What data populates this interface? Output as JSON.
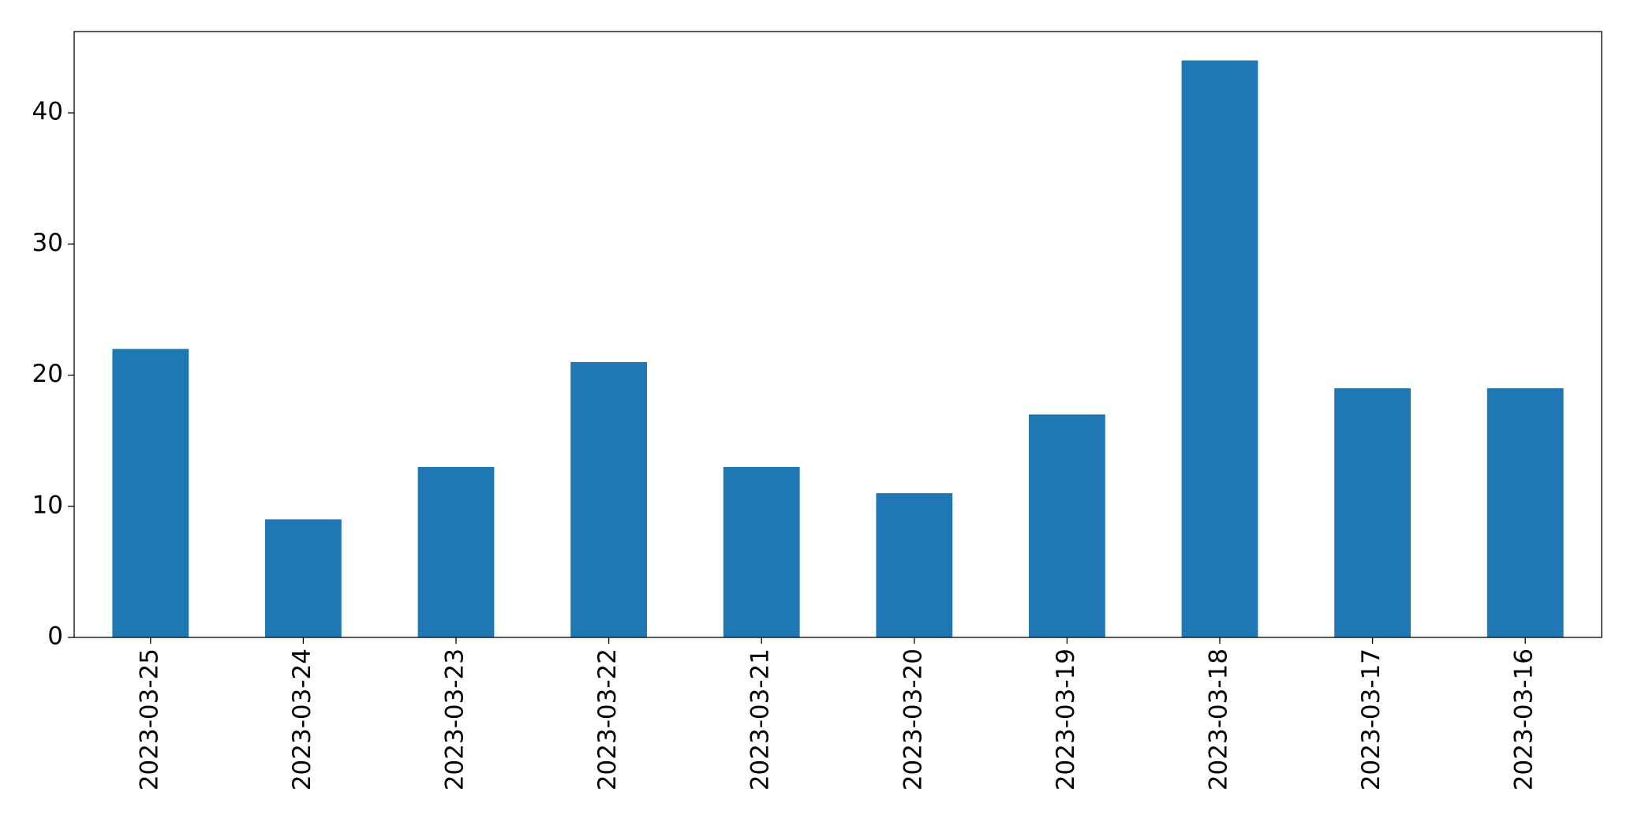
{
  "chart_data": {
    "type": "bar",
    "categories": [
      "2023-03-25",
      "2023-03-24",
      "2023-03-23",
      "2023-03-22",
      "2023-03-21",
      "2023-03-20",
      "2023-03-19",
      "2023-03-18",
      "2023-03-17",
      "2023-03-16"
    ],
    "values": [
      22,
      9,
      13,
      21,
      13,
      11,
      17,
      44,
      19,
      19
    ],
    "color": "#1f77b4",
    "ylim": [
      0,
      46.2
    ],
    "yticks": [
      0,
      10,
      20,
      30,
      40
    ],
    "grid": false
  }
}
